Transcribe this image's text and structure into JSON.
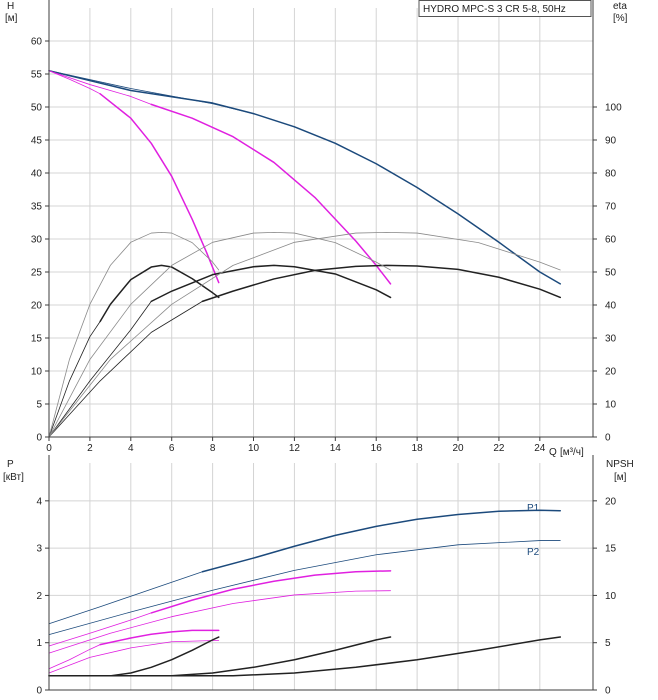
{
  "chart_data": [
    {
      "type": "line",
      "title": "HYDRO MPC-S 3 CR 5-8, 50Hz",
      "ylabel": "H",
      "ylabel_unit": "[м]",
      "y2label": "eta",
      "y2label_unit": "[%]",
      "xlabel": "Q",
      "xlabel_unit": "[м³/ч]",
      "xlim": [
        0,
        26.6
      ],
      "ylim": [
        0,
        65
      ],
      "y2lim": [
        0,
        130
      ],
      "x_ticks": [
        0,
        2,
        4,
        6,
        8,
        10,
        12,
        14,
        16,
        18,
        20,
        22,
        24
      ],
      "y_ticks": [
        0,
        5,
        10,
        15,
        20,
        25,
        30,
        35,
        40,
        45,
        50,
        55,
        60
      ],
      "y2_ticks": [
        0,
        10,
        20,
        30,
        40,
        50,
        60,
        70,
        80,
        90,
        100
      ],
      "grid": true,
      "series": [
        {
          "name": "H 3 pumps running",
          "axis": "left",
          "color": "#1c4a7c",
          "width": 1.5,
          "x": [
            0,
            4,
            8,
            10,
            12,
            14,
            16,
            18,
            20,
            22,
            24,
            25
          ],
          "y": [
            55.5,
            52.5,
            50.6,
            49,
            47,
            44.5,
            41.4,
            37.8,
            33.8,
            29.5,
            25,
            23.2
          ]
        },
        {
          "name": "H 3 pumps running, thin",
          "axis": "left",
          "color": "#1c4a7c",
          "width": 0.8,
          "x": [
            0,
            4,
            8,
            10
          ],
          "y": [
            55.5,
            52.8,
            50.5,
            49
          ]
        },
        {
          "name": "H 2 pumps running",
          "axis": "left",
          "color": "#e020e0",
          "width": 1.5,
          "x": [
            5,
            7,
            9,
            11,
            13,
            15,
            16,
            16.7
          ],
          "y": [
            50.4,
            48.3,
            45.5,
            41.6,
            36.3,
            29.7,
            26,
            23.2
          ]
        },
        {
          "name": "H 2 pumps running, thin",
          "axis": "left",
          "color": "#e020e0",
          "width": 0.8,
          "x": [
            0,
            2,
            4,
            5
          ],
          "y": [
            55.5,
            53.4,
            51.6,
            50.4
          ]
        },
        {
          "name": "H 1 pump running",
          "axis": "left",
          "color": "#e020e0",
          "width": 1.5,
          "x": [
            2.5,
            4,
            5,
            6,
            7,
            7.7,
            8.3
          ],
          "y": [
            52,
            48.3,
            44.5,
            39.5,
            33,
            28,
            23.4
          ]
        },
        {
          "name": "H 1 pump running, thin",
          "axis": "left",
          "color": "#e020e0",
          "width": 0.8,
          "x": [
            0,
            1,
            2,
            2.5
          ],
          "y": [
            55.5,
            54.2,
            52.8,
            52
          ]
        },
        {
          "name": "eta 1 pump",
          "axis": "right",
          "color": "#222222",
          "width": 1.5,
          "x": [
            2.5,
            3,
            4,
            5,
            5.5,
            6,
            7,
            8,
            8.3
          ],
          "y": [
            35,
            40.2,
            47.7,
            51.5,
            52,
            51.5,
            48,
            43.7,
            42.3
          ]
        },
        {
          "name": "eta 2 pumps",
          "axis": "right",
          "color": "#222222",
          "width": 1.5,
          "x": [
            5,
            6,
            8,
            10,
            11,
            12,
            14,
            16,
            16.7
          ],
          "y": [
            41.1,
            44.2,
            49.2,
            51.6,
            52,
            51.6,
            49.4,
            44.6,
            42.3
          ]
        },
        {
          "name": "eta 3 pumps",
          "axis": "right",
          "color": "#222222",
          "width": 1.5,
          "x": [
            7.5,
            9,
            11,
            13,
            15,
            16.5,
            18,
            20,
            22,
            24,
            25
          ],
          "y": [
            41.1,
            44.2,
            47.9,
            50.5,
            51.7,
            52,
            51.8,
            50.8,
            48.4,
            44.8,
            42.3
          ]
        },
        {
          "name": "eta 1 pump, thin",
          "axis": "right",
          "color": "#222222",
          "width": 0.8,
          "x": [
            0,
            1,
            2,
            2.5
          ],
          "y": [
            0,
            17,
            30.4,
            35
          ]
        },
        {
          "name": "eta 2 pumps, thin",
          "axis": "right",
          "color": "#222222",
          "width": 0.8,
          "x": [
            0,
            2,
            4,
            5
          ],
          "y": [
            0,
            17,
            32.5,
            41.1
          ]
        },
        {
          "name": "eta 3 pumps, thin",
          "axis": "right",
          "color": "#222222",
          "width": 0.8,
          "x": [
            0,
            2.5,
            5,
            7.5
          ],
          "y": [
            0,
            17,
            31.7,
            41.1
          ]
        },
        {
          "name": "eta (grey) 1 pump",
          "axis": "right",
          "color": "#8a8a8a",
          "width": 0.8,
          "x": [
            0,
            1,
            2,
            3,
            4,
            5,
            5.5,
            6,
            7,
            8,
            8.3
          ],
          "y": [
            0,
            23.5,
            40.2,
            52,
            59,
            61.8,
            62,
            61.8,
            58.9,
            53,
            50.6
          ]
        },
        {
          "name": "eta (grey) 2 pumps",
          "axis": "right",
          "color": "#8a8a8a",
          "width": 0.8,
          "x": [
            0,
            2,
            4,
            6,
            8,
            10,
            11,
            12,
            14,
            16,
            16.7
          ],
          "y": [
            0,
            23.5,
            40.2,
            52,
            59,
            61.8,
            62,
            61.8,
            58.9,
            53,
            50.6
          ]
        },
        {
          "name": "eta (grey) 3 pumps",
          "axis": "right",
          "color": "#8a8a8a",
          "width": 0.8,
          "x": [
            0,
            3,
            6,
            9,
            12,
            15,
            16.5,
            18,
            21,
            24,
            25
          ],
          "y": [
            0,
            23.5,
            40.2,
            52,
            59,
            61.8,
            62,
            61.8,
            58.9,
            53,
            50.6
          ]
        }
      ]
    },
    {
      "type": "line",
      "ylabel": "P",
      "ylabel_unit": "[кВт]",
      "y2label": "NPSH",
      "y2label_unit": "[м]",
      "xlim": [
        0,
        26.6
      ],
      "ylim": [
        0,
        4.8
      ],
      "y2lim": [
        0,
        24
      ],
      "y_ticks": [
        0,
        1,
        2,
        3,
        4
      ],
      "y2_ticks": [
        0,
        5,
        10,
        15,
        20
      ],
      "grid": true,
      "annotations": [
        "P1",
        "P2"
      ],
      "series": [
        {
          "name": "P1 3 pumps",
          "axis": "left",
          "color": "#1c4a7c",
          "width": 1.5,
          "x": [
            7.5,
            10,
            12,
            14,
            16,
            18,
            20,
            22,
            24,
            25
          ],
          "y": [
            2.5,
            2.79,
            3.04,
            3.27,
            3.46,
            3.61,
            3.71,
            3.78,
            3.8,
            3.79
          ]
        },
        {
          "name": "P1 3 pumps, thin",
          "axis": "left",
          "color": "#1c4a7c",
          "width": 0.8,
          "x": [
            0,
            2.5,
            5,
            7.5
          ],
          "y": [
            1.4,
            1.76,
            2.13,
            2.5
          ]
        },
        {
          "name": "P2 3 pumps",
          "axis": "left",
          "color": "#1c4a7c",
          "width": 0.8,
          "x": [
            0,
            4,
            8,
            12,
            16,
            20,
            24,
            25
          ],
          "y": [
            1.17,
            1.65,
            2.11,
            2.53,
            2.86,
            3.07,
            3.16,
            3.16
          ]
        },
        {
          "name": "P1 2 pumps",
          "axis": "left",
          "color": "#e020e0",
          "width": 1.5,
          "x": [
            5,
            7,
            9,
            11,
            13,
            15,
            16.7
          ],
          "y": [
            1.63,
            1.9,
            2.13,
            2.3,
            2.43,
            2.5,
            2.52
          ]
        },
        {
          "name": "P1 2 pumps, thin",
          "axis": "left",
          "color": "#e020e0",
          "width": 0.8,
          "x": [
            0,
            2,
            4,
            5
          ],
          "y": [
            0.93,
            1.2,
            1.48,
            1.63
          ]
        },
        {
          "name": "P2 2 pumps",
          "axis": "left",
          "color": "#e020e0",
          "width": 0.8,
          "x": [
            0,
            3,
            6,
            9,
            12,
            15,
            16.7
          ],
          "y": [
            0.78,
            1.2,
            1.55,
            1.83,
            2.01,
            2.09,
            2.1
          ]
        },
        {
          "name": "P1 1 pump",
          "axis": "left",
          "color": "#e020e0",
          "width": 1.5,
          "x": [
            2.5,
            4,
            5,
            6,
            7,
            8.3
          ],
          "y": [
            0.96,
            1.1,
            1.18,
            1.23,
            1.26,
            1.26
          ]
        },
        {
          "name": "P1 1 pump, thin",
          "axis": "left",
          "color": "#e020e0",
          "width": 0.8,
          "x": [
            0,
            1,
            2,
            2.5
          ],
          "y": [
            0.45,
            0.64,
            0.86,
            0.96
          ]
        },
        {
          "name": "P2 1 pump",
          "axis": "left",
          "color": "#e020e0",
          "width": 0.8,
          "x": [
            0,
            2,
            4,
            6,
            8.3
          ],
          "y": [
            0.36,
            0.69,
            0.89,
            1.02,
            1.05
          ]
        },
        {
          "name": "NPSH 1 pump",
          "axis": "right",
          "color": "#222222",
          "width": 1.5,
          "x": [
            0,
            3,
            4,
            5,
            6,
            7,
            8,
            8.3
          ],
          "y": [
            1.5,
            1.5,
            1.8,
            2.4,
            3.2,
            4.2,
            5.3,
            5.6
          ]
        },
        {
          "name": "NPSH 2 pumps",
          "axis": "right",
          "color": "#222222",
          "width": 1.5,
          "x": [
            0,
            6,
            8,
            10,
            12,
            14,
            16,
            16.7
          ],
          "y": [
            1.5,
            1.5,
            1.8,
            2.4,
            3.2,
            4.2,
            5.3,
            5.6
          ]
        },
        {
          "name": "NPSH 3 pumps",
          "axis": "right",
          "color": "#222222",
          "width": 1.5,
          "x": [
            0,
            9,
            12,
            15,
            18,
            21,
            24,
            25
          ],
          "y": [
            1.5,
            1.5,
            1.8,
            2.4,
            3.2,
            4.2,
            5.3,
            5.6
          ]
        }
      ]
    }
  ]
}
